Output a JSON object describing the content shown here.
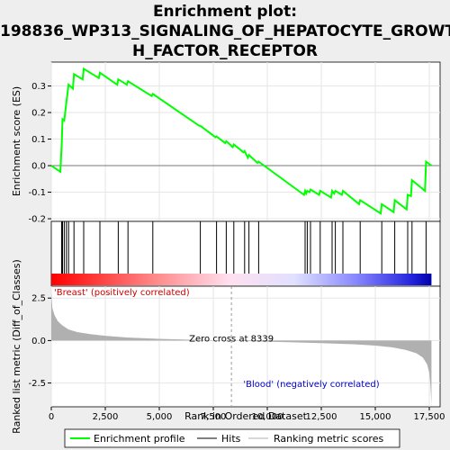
{
  "title_lines": [
    "Enrichment plot:",
    "198836_WP313_SIGNALING_OF_HEPATOCYTE_GROWT",
    "H_FACTOR_RECEPTOR"
  ],
  "chart_data": {
    "type": "line",
    "title": "Enrichment plot: 198836_WP313_SIGNALING_OF_HEPATOCYTE_GROWTH_FACTOR_RECEPTOR",
    "xlabel": "Rank in Ordered Dataset",
    "top_ylabel": "Enrichment score (ES)",
    "bottom_ylabel": "Ranked list metric (Diff_of_Classes)",
    "xlim": [
      0,
      18000
    ],
    "top_ylim": [
      -0.21,
      0.39
    ],
    "bottom_ylim": [
      -3.9,
      3.2
    ],
    "x_ticks": [
      "0",
      "2,500",
      "5,000",
      "7,500",
      "10,000",
      "12,500",
      "15,000",
      "17,500"
    ],
    "x_tick_values": [
      0,
      2500,
      5000,
      7500,
      10000,
      12500,
      15000,
      17500
    ],
    "top_y_ticks": [
      "-0.2",
      "-0.1",
      "0.0",
      "0.1",
      "0.2",
      "0.3"
    ],
    "top_y_tick_values": [
      -0.2,
      -0.1,
      0.0,
      0.1,
      0.2,
      0.3
    ],
    "bottom_y_ticks": [
      "-2.5",
      "0.0",
      "2.5"
    ],
    "bottom_y_tick_values": [
      -2.5,
      0.0,
      2.5
    ],
    "positive_label": "'Breast' (positively correlated)",
    "negative_label": "'Blood' (negatively correlated)",
    "zero_cross_label": "Zero cross at 8339",
    "zero_cross": 8339,
    "n_genes": 17600,
    "hits": [
      480,
      520,
      600,
      700,
      800,
      1050,
      1500,
      2250,
      3100,
      3550,
      4700,
      6900,
      7650,
      8100,
      8450,
      8950,
      9150,
      9600,
      11750,
      11850,
      12000,
      12450,
      13000,
      13150,
      13500,
      14300,
      15300,
      15900,
      16500,
      16700,
      17350
    ],
    "series": [
      {
        "name": "Enrichment profile",
        "color": "#00ff00",
        "x": [
          0,
          420,
          480,
          520,
          600,
          700,
          800,
          1000,
          1050,
          1450,
          1500,
          2200,
          2250,
          3050,
          3100,
          3500,
          3550,
          4650,
          4700,
          6850,
          6900,
          7600,
          7650,
          8050,
          8100,
          8400,
          8450,
          8900,
          8950,
          9100,
          9150,
          9550,
          9600,
          11700,
          11750,
          11800,
          11850,
          11950,
          12000,
          12400,
          12450,
          12950,
          13000,
          13100,
          13150,
          13450,
          13500,
          14250,
          14300,
          15250,
          15300,
          15850,
          15900,
          16450,
          16500,
          16650,
          16700,
          17300,
          17350,
          17600
        ],
        "y": [
          0.0,
          -0.023,
          0.075,
          0.175,
          0.17,
          0.24,
          0.305,
          0.29,
          0.345,
          0.325,
          0.365,
          0.33,
          0.35,
          0.305,
          0.325,
          0.305,
          0.318,
          0.262,
          0.27,
          0.15,
          0.15,
          0.107,
          0.11,
          0.085,
          0.092,
          0.07,
          0.08,
          0.05,
          0.055,
          0.03,
          0.04,
          0.01,
          0.015,
          -0.11,
          -0.095,
          -0.105,
          -0.095,
          -0.1,
          -0.09,
          -0.11,
          -0.095,
          -0.12,
          -0.095,
          -0.105,
          -0.095,
          -0.11,
          -0.095,
          -0.145,
          -0.13,
          -0.18,
          -0.145,
          -0.175,
          -0.13,
          -0.165,
          -0.11,
          -0.115,
          -0.055,
          -0.095,
          0.015,
          0.0
        ]
      },
      {
        "name": "Ranking metric scores",
        "color": "#b0b0b0",
        "x": [
          0,
          50,
          150,
          300,
          500,
          800,
          1200,
          1800,
          2500,
          3500,
          5000,
          6500,
          8000,
          8339,
          9500,
          11000,
          12500,
          14000,
          15000,
          15800,
          16400,
          16900,
          17200,
          17400,
          17500,
          17550,
          17580,
          17600
        ],
        "y": [
          2.8,
          1.9,
          1.5,
          1.15,
          0.9,
          0.65,
          0.5,
          0.38,
          0.28,
          0.18,
          0.1,
          0.05,
          0.01,
          0.0,
          -0.05,
          -0.1,
          -0.15,
          -0.22,
          -0.3,
          -0.4,
          -0.55,
          -0.75,
          -1.0,
          -1.4,
          -1.9,
          -2.6,
          -3.3,
          -3.8
        ]
      }
    ],
    "legend": [
      "Enrichment profile",
      "Hits",
      "Ranking metric scores"
    ],
    "legend_position": "bottom"
  }
}
